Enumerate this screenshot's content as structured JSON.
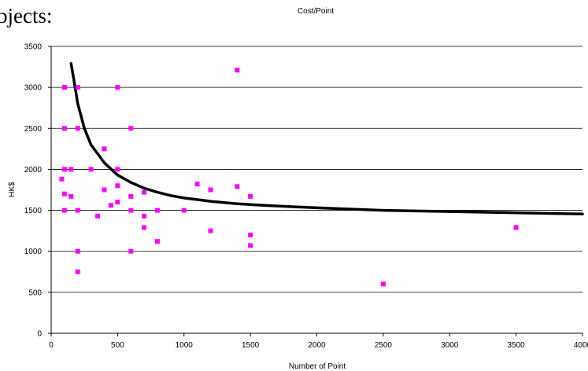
{
  "page": {
    "fragment_text": "bjects:"
  },
  "chart_data": {
    "type": "scatter",
    "title": "Cost/Point",
    "xlabel": "Number of Point",
    "ylabel": "HK$",
    "xlim": [
      0,
      4000
    ],
    "ylim": [
      0,
      3500
    ],
    "x_ticks": [
      0,
      500,
      1000,
      1500,
      2000,
      2500,
      3000,
      3500,
      4000
    ],
    "y_ticks": [
      0,
      500,
      1000,
      1500,
      2000,
      2500,
      3000,
      3500
    ],
    "grid": "horizontal",
    "series": [
      {
        "color": "#ff00ff",
        "points": [
          [
            80,
            1880
          ],
          [
            100,
            3000
          ],
          [
            100,
            2500
          ],
          [
            100,
            2000
          ],
          [
            100,
            1700
          ],
          [
            100,
            1500
          ],
          [
            150,
            2000
          ],
          [
            150,
            1670
          ],
          [
            200,
            3000
          ],
          [
            200,
            2500
          ],
          [
            200,
            1500
          ],
          [
            200,
            1000
          ],
          [
            200,
            750
          ],
          [
            300,
            2000
          ],
          [
            350,
            1430
          ],
          [
            400,
            2250
          ],
          [
            400,
            1750
          ],
          [
            450,
            1560
          ],
          [
            500,
            3000
          ],
          [
            500,
            2000
          ],
          [
            500,
            1800
          ],
          [
            500,
            1600
          ],
          [
            600,
            2500
          ],
          [
            600,
            1670
          ],
          [
            600,
            1500
          ],
          [
            600,
            1000
          ],
          [
            700,
            1720
          ],
          [
            700,
            1430
          ],
          [
            700,
            1290
          ],
          [
            800,
            1500
          ],
          [
            800,
            1120
          ],
          [
            1000,
            1500
          ],
          [
            1100,
            1820
          ],
          [
            1200,
            1750
          ],
          [
            1200,
            1250
          ],
          [
            1400,
            3210
          ],
          [
            1400,
            1790
          ],
          [
            1500,
            1670
          ],
          [
            1500,
            1200
          ],
          [
            1500,
            1070
          ],
          [
            2500,
            600
          ],
          [
            3500,
            1290
          ]
        ]
      }
    ],
    "trendline": {
      "color": "#000000",
      "points": [
        [
          150,
          3290
        ],
        [
          170,
          3100
        ],
        [
          200,
          2800
        ],
        [
          250,
          2500
        ],
        [
          300,
          2300
        ],
        [
          400,
          2080
        ],
        [
          500,
          1930
        ],
        [
          600,
          1840
        ],
        [
          700,
          1770
        ],
        [
          800,
          1720
        ],
        [
          900,
          1680
        ],
        [
          1000,
          1650
        ],
        [
          1200,
          1610
        ],
        [
          1400,
          1580
        ],
        [
          1600,
          1560
        ],
        [
          2000,
          1530
        ],
        [
          2500,
          1500
        ],
        [
          3000,
          1485
        ],
        [
          3500,
          1470
        ],
        [
          4000,
          1455
        ]
      ]
    }
  }
}
